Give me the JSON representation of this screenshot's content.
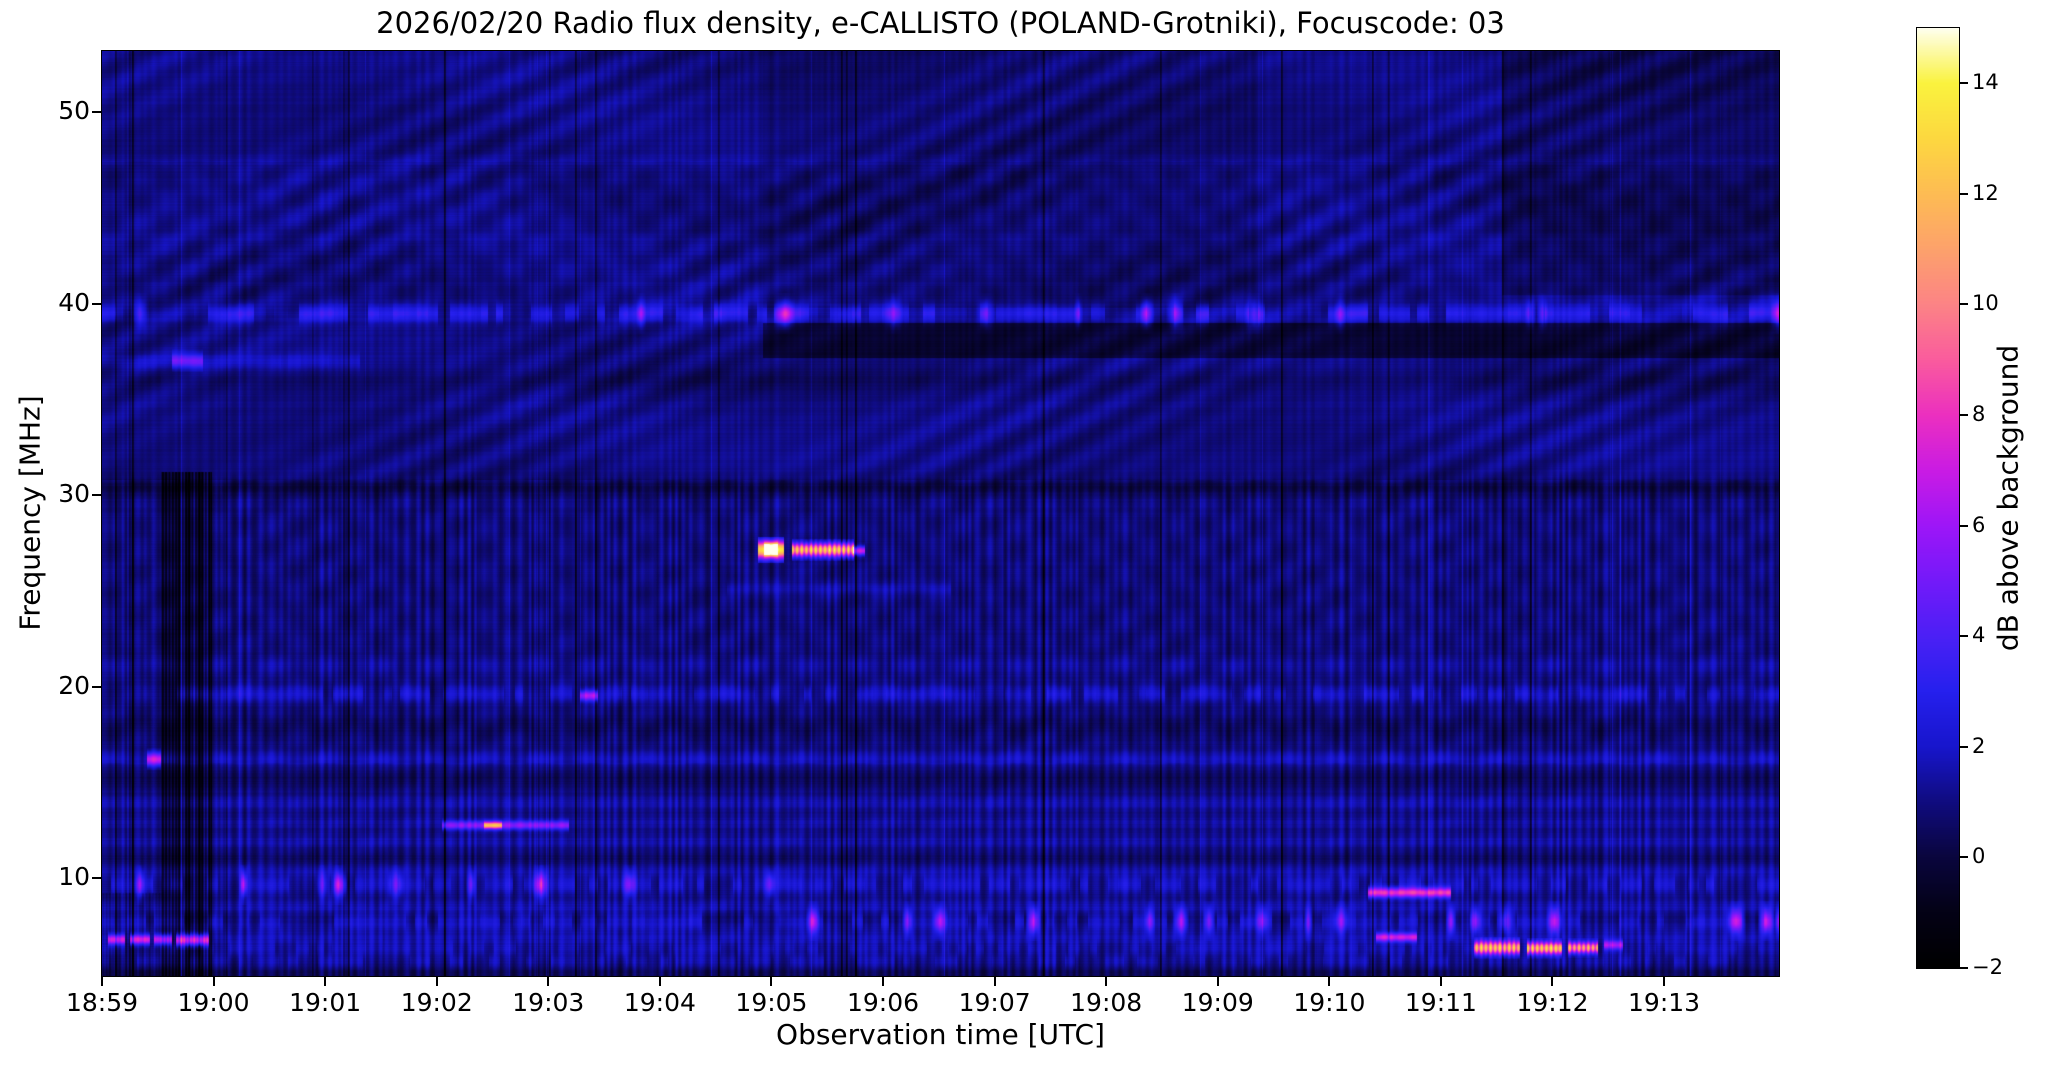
{
  "figure": {
    "title": "2026/02/20  Radio flux density, e-CALLISTO (POLAND-Grotniki), Focuscode: 03"
  },
  "chart_data": {
    "type": "heatmap",
    "subtype": "solar-radio-spectrogram",
    "title": "2026/02/20  Radio flux density, e-CALLISTO (POLAND-Grotniki), Focuscode: 03",
    "xlabel": "Observation time [UTC]",
    "ylabel": "Frequency [MHz]",
    "x_tick_labels": [
      "18:59",
      "19:00",
      "19:01",
      "19:02",
      "19:03",
      "19:04",
      "19:05",
      "19:06",
      "19:07",
      "19:08",
      "19:09",
      "19:10",
      "19:11",
      "19:12",
      "19:13"
    ],
    "x_tick_minutes": [
      0,
      1,
      2,
      3,
      4,
      5,
      6,
      7,
      8,
      9,
      10,
      11,
      12,
      13,
      14
    ],
    "x_range_minutes": [
      0,
      15.03
    ],
    "y_tick_values": [
      10,
      20,
      30,
      40,
      50
    ],
    "y_tick_labels": [
      "10",
      "20",
      "30",
      "40",
      "50"
    ],
    "y_range_mhz": [
      4.9,
      53.2
    ],
    "grid": false,
    "colorbar": {
      "label": "dB above background",
      "tick_values": [
        -2,
        0,
        2,
        4,
        6,
        8,
        10,
        12,
        14
      ],
      "tick_labels": [
        "−2",
        "0",
        "2",
        "4",
        "6",
        "8",
        "10",
        "12",
        "14"
      ],
      "range": [
        -2,
        15
      ],
      "colormap": "gnuplot2-like (black-blue-violet-magenta-pink-orange-yellow-white)",
      "stops": [
        [
          -2,
          0,
          0,
          0
        ],
        [
          -1,
          4,
          2,
          22
        ],
        [
          0,
          10,
          6,
          62
        ],
        [
          1,
          16,
          12,
          128
        ],
        [
          2,
          24,
          22,
          205
        ],
        [
          3,
          38,
          32,
          238
        ],
        [
          4,
          76,
          32,
          246
        ],
        [
          5,
          116,
          26,
          250
        ],
        [
          6,
          158,
          22,
          248
        ],
        [
          7,
          202,
          28,
          228
        ],
        [
          8,
          236,
          48,
          192
        ],
        [
          9,
          250,
          92,
          158
        ],
        [
          10,
          252,
          132,
          134
        ],
        [
          11,
          253,
          162,
          108
        ],
        [
          12,
          253,
          188,
          84
        ],
        [
          13,
          253,
          216,
          64
        ],
        [
          14,
          250,
          243,
          62
        ],
        [
          15,
          255,
          255,
          238
        ]
      ]
    },
    "background_level_db": {
      "below_31mhz": 0.92,
      "above_31mhz": 1.02
    },
    "bands": [
      {
        "f": 47.5,
        "hw": 0.18,
        "lvl": 0.35
      },
      {
        "f": 43.5,
        "hw": 0.18,
        "lvl": 0.22
      },
      {
        "f": 39.5,
        "hw": 0.32,
        "lvl": 2.1,
        "dash": 0.55,
        "hot": 0.1,
        "hotLvl": 3.6
      },
      {
        "f": 37.0,
        "hw": 0.3,
        "lvl": 0.9,
        "t1": 2.3
      },
      {
        "f": 36.0,
        "hw": 0.45,
        "lvl": -0.5
      },
      {
        "f": 30.4,
        "hw": 0.3,
        "lvl": -0.9
      },
      {
        "f": 25.1,
        "hw": 0.25,
        "lvl": 0.7,
        "t0": 5.6,
        "t1": 7.6
      },
      {
        "f": 21.1,
        "hw": 0.25,
        "lvl": 0.45
      },
      {
        "f": 19.6,
        "hw": 0.3,
        "lvl": 1.25,
        "dash": 0.6
      },
      {
        "f": 17.9,
        "hw": 0.45,
        "lvl": -0.5
      },
      {
        "f": 16.2,
        "hw": 0.28,
        "lvl": 0.85
      },
      {
        "f": 15.2,
        "hw": 0.35,
        "lvl": -0.55
      },
      {
        "f": 13.9,
        "hw": 0.25,
        "lvl": 0.7
      },
      {
        "f": 12.9,
        "hw": 0.22,
        "lvl": 0.5
      },
      {
        "f": 11.9,
        "hw": 0.24,
        "lvl": 0.6
      },
      {
        "f": 11.0,
        "hw": 0.3,
        "lvl": -0.35
      },
      {
        "f": 10.4,
        "hw": 0.25,
        "lvl": 0.7
      },
      {
        "f": 9.65,
        "hw": 0.32,
        "lvl": 1.3,
        "dash": 0.6,
        "hot": 0.13,
        "hotLvl": 4.5,
        "hotT1": 6.6
      },
      {
        "f": 8.45,
        "hw": 0.28,
        "lvl": 0.75
      },
      {
        "f": 8.0,
        "hw": 0.22,
        "lvl": -0.5
      },
      {
        "f": 7.75,
        "hw": 0.32,
        "lvl": 1.4,
        "dash": 0.62,
        "hot": 0.16,
        "hotLvl": 4.8,
        "hotT0": 6.3
      },
      {
        "f": 6.9,
        "hw": 0.28,
        "lvl": 0.7
      },
      {
        "f": 6.3,
        "hw": 0.28,
        "lvl": 0.8,
        "dash": 0.6
      },
      {
        "f": 5.6,
        "hw": 0.28,
        "lvl": 0.8,
        "dash": 0.5
      },
      {
        "f": 5.0,
        "hw": 0.3,
        "lvl": -0.7
      }
    ],
    "dark_patches": [
      {
        "t0": 0.53,
        "t1": 0.98,
        "f0": 4.9,
        "f1": 31.2,
        "lvl": -1.9,
        "style": "columns",
        "note": "black interference columns just before 19:00"
      },
      {
        "t0": 0.0,
        "t1": 0.53,
        "f0": 4.9,
        "f1": 9.2,
        "lvl": -0.55,
        "style": "columns"
      },
      {
        "t0": 5.92,
        "t1": 15.03,
        "f0": 37.2,
        "f1": 39.0,
        "lvl": -1.25,
        "style": "flat",
        "note": "dark lane right of 19:05 below 39 MHz band"
      },
      {
        "t0": 5.92,
        "t1": 10.35,
        "f0": 39.8,
        "f1": 53.2,
        "lvl": -0.3,
        "style": "flat"
      },
      {
        "t0": 12.55,
        "t1": 15.03,
        "f0": 40.5,
        "f1": 53.2,
        "lvl": -0.55,
        "style": "flat"
      }
    ],
    "bright_features": [
      {
        "t0": 5.88,
        "t1": 6.1,
        "f0": 26.75,
        "f1": 27.55,
        "lvl": 12.5,
        "style": "core",
        "label": "burst head ~19:05 at 27 MHz"
      },
      {
        "t0": 5.93,
        "t1": 6.05,
        "f0": 26.95,
        "f1": 27.4,
        "lvl": 15.0,
        "style": "core",
        "label": "white-hot core"
      },
      {
        "t0": 6.18,
        "t1": 6.73,
        "f0": 26.85,
        "f1": 27.45,
        "lvl": 10.5,
        "style": "striated",
        "label": "striated orange streak to ~19:05:45"
      },
      {
        "t0": 6.73,
        "t1": 6.83,
        "f0": 26.9,
        "f1": 27.3,
        "lvl": 6.5,
        "style": "core"
      },
      {
        "t0": 3.05,
        "t1": 4.18,
        "f0": 12.55,
        "f1": 12.95,
        "lvl": 4.2,
        "style": "core",
        "label": "faint magenta line 12.7 MHz ~19:02"
      },
      {
        "t0": 3.42,
        "t1": 3.58,
        "f0": 12.6,
        "f1": 12.9,
        "lvl": 6.8,
        "style": "core"
      },
      {
        "t0": 4.28,
        "t1": 4.44,
        "f0": 19.3,
        "f1": 19.75,
        "lvl": 4.5,
        "style": "core"
      },
      {
        "t0": 0.4,
        "t1": 0.52,
        "f0": 15.9,
        "f1": 16.5,
        "lvl": 5.5,
        "style": "core"
      },
      {
        "t0": 0.63,
        "t1": 0.9,
        "f0": 36.7,
        "f1": 37.35,
        "lvl": 3.2,
        "style": "core",
        "label": "bright blue dash 37 MHz ~18:59:45"
      },
      {
        "t0": 11.35,
        "t1": 12.08,
        "f0": 9.0,
        "f1": 9.45,
        "lvl": 6.8,
        "style": "core",
        "label": "pink streak 9.2 MHz ~19:10"
      },
      {
        "t0": 11.42,
        "t1": 11.78,
        "f0": 6.7,
        "f1": 7.1,
        "lvl": 5.5,
        "style": "core"
      },
      {
        "t0": 12.3,
        "t1": 12.7,
        "f0": 6.05,
        "f1": 6.65,
        "lvl": 9.3,
        "style": "striated",
        "label": "salmon streaks 6.3 MHz ~19:11-19:13"
      },
      {
        "t0": 12.77,
        "t1": 13.08,
        "f0": 6.05,
        "f1": 6.6,
        "lvl": 9.8,
        "style": "striated"
      },
      {
        "t0": 13.14,
        "t1": 13.4,
        "f0": 6.1,
        "f1": 6.6,
        "lvl": 8.8,
        "style": "striated"
      },
      {
        "t0": 13.46,
        "t1": 13.62,
        "f0": 6.3,
        "f1": 6.7,
        "lvl": 4.5,
        "style": "core"
      },
      {
        "t0": 0.05,
        "t1": 0.2,
        "f0": 6.55,
        "f1": 7.0,
        "lvl": 5.8,
        "style": "core",
        "label": "violet dashes 6.8 MHz at 18:59"
      },
      {
        "t0": 0.25,
        "t1": 0.42,
        "f0": 6.55,
        "f1": 7.0,
        "lvl": 6.3,
        "style": "core"
      },
      {
        "t0": 0.47,
        "t1": 0.62,
        "f0": 6.55,
        "f1": 7.0,
        "lvl": 5.6,
        "style": "core"
      },
      {
        "t0": 0.66,
        "t1": 0.95,
        "f0": 6.5,
        "f1": 7.0,
        "lvl": 6.8,
        "style": "core"
      }
    ],
    "texture": {
      "vertical_striation_amp_below_31mhz": 1.0,
      "vertical_striation_amp_above_31mhz": 0.38,
      "diagonal_wave_amp_above_31mhz": 0.45,
      "plaid_amp": 0.26,
      "row_noise_amp": 0.12,
      "seed": 1337
    }
  }
}
